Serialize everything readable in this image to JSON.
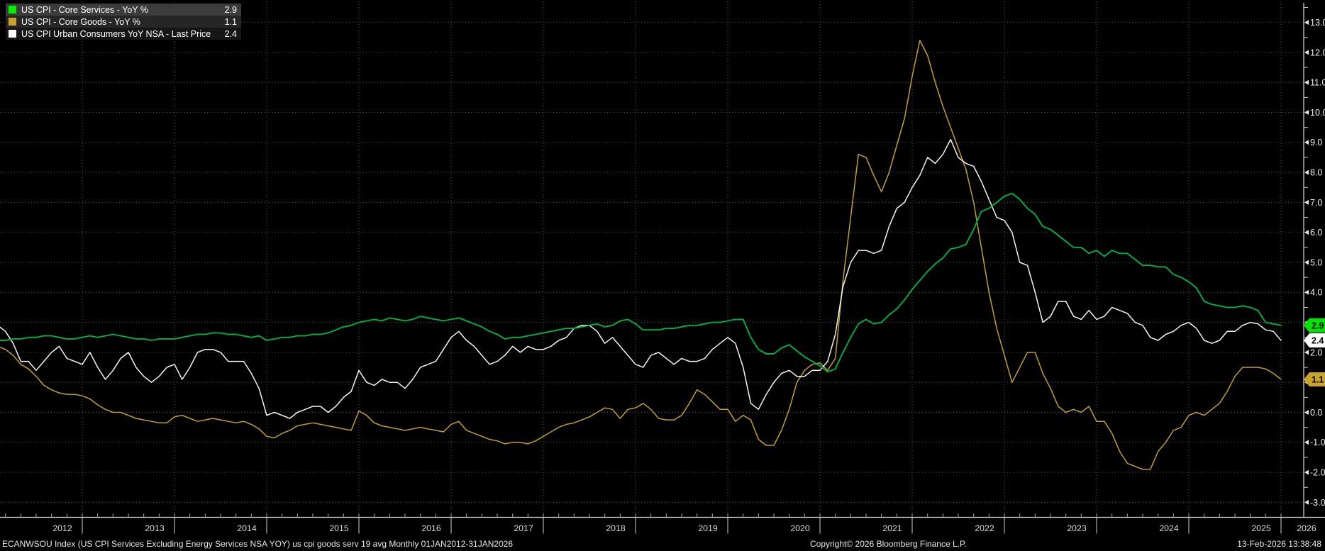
{
  "window": {
    "background": "#000000",
    "accent_green": "#00E400",
    "accent_gold": "#C8A22C",
    "accent_white": "#FFFFFF"
  },
  "legend": {
    "rows": [
      {
        "label": "US CPI - Core Services - YoY %",
        "value": "2.9",
        "swatch": "#00F100"
      },
      {
        "label": "US CPI - Core Goods - YoY %",
        "value": "1.1",
        "swatch": "#C8A22C"
      },
      {
        "label": "US CPI Urban Consumers YoY NSA - Last Price",
        "value": "2.4",
        "swatch": "#FFFFFF"
      }
    ]
  },
  "footer": {
    "left": "ECANWSOU Index (US CPI Services Excluding Energy Services NSA YOY) us cpi goods serv 19 avg Monthly 01JAN2012-31JAN2026",
    "copyright": "Copyright© 2026 Bloomberg Finance L.P.",
    "timestamp": "13-Feb-2026 13:38:48"
  },
  "chart_data": {
    "type": "line",
    "title": "",
    "x_unit": "month",
    "x_start": "2012-01",
    "x_end": "2026-01",
    "frequency": "Monthly",
    "grid": {
      "horizontal_every": 1.0,
      "vertical": "yearly",
      "style": "dotted"
    },
    "legend_position": "top-left",
    "ylim": [
      -3.5,
      13.6
    ],
    "year_labels": [
      "2012",
      "2013",
      "2014",
      "2015",
      "2016",
      "2017",
      "2018",
      "2019",
      "2020",
      "2021",
      "2022",
      "2023",
      "2024",
      "2025",
      "2026"
    ],
    "y_ticks": [
      {
        "value": 13,
        "label": "13.0"
      },
      {
        "value": 12,
        "label": "12.0"
      },
      {
        "value": 11,
        "label": "11.0"
      },
      {
        "value": 10,
        "label": "10.0"
      },
      {
        "value": 9,
        "label": "9.0"
      },
      {
        "value": 8,
        "label": "8.0"
      },
      {
        "value": 7,
        "label": "7.0"
      },
      {
        "value": 6,
        "label": "6.0"
      },
      {
        "value": 5,
        "label": "5.0"
      },
      {
        "value": 4,
        "label": "4.0"
      },
      {
        "value": 2,
        "label": "2.0"
      },
      {
        "value": 0,
        "label": "0.0"
      },
      {
        "value": -1,
        "label": "-1.0"
      },
      {
        "value": -2,
        "label": "-2.0"
      },
      {
        "value": -3,
        "label": "-3.0"
      }
    ],
    "last_value_badges": [
      {
        "value": 2.9,
        "label": "2.9",
        "bg": "#00E400",
        "fg": "#000000"
      },
      {
        "value": 2.4,
        "label": "2.4",
        "bg": "#FFFFFF",
        "fg": "#000000"
      },
      {
        "value": 1.1,
        "label": "1.1",
        "bg": "#C9A42A",
        "fg": "#000000"
      }
    ],
    "series": [
      {
        "name": "US CPI - Core Services - YoY %",
        "color": "#00B140",
        "last": 2.9,
        "values": [
          2.35,
          2.4,
          2.4,
          2.45,
          2.45,
          2.5,
          2.5,
          2.55,
          2.55,
          2.5,
          2.45,
          2.45,
          2.5,
          2.55,
          2.5,
          2.55,
          2.6,
          2.55,
          2.5,
          2.45,
          2.45,
          2.4,
          2.45,
          2.45,
          2.45,
          2.5,
          2.55,
          2.6,
          2.6,
          2.65,
          2.65,
          2.6,
          2.6,
          2.55,
          2.5,
          2.55,
          2.4,
          2.45,
          2.5,
          2.5,
          2.55,
          2.55,
          2.6,
          2.6,
          2.65,
          2.75,
          2.85,
          2.9,
          3.0,
          3.05,
          3.1,
          3.05,
          3.15,
          3.1,
          3.05,
          3.1,
          3.2,
          3.15,
          3.1,
          3.05,
          3.1,
          3.15,
          3.05,
          2.95,
          2.85,
          2.7,
          2.6,
          2.45,
          2.5,
          2.5,
          2.55,
          2.6,
          2.65,
          2.7,
          2.75,
          2.8,
          2.8,
          2.85,
          2.9,
          2.95,
          2.85,
          2.9,
          3.05,
          3.1,
          2.95,
          2.75,
          2.75,
          2.75,
          2.8,
          2.8,
          2.85,
          2.9,
          2.9,
          2.95,
          3.0,
          3.0,
          3.05,
          3.1,
          3.1,
          2.5,
          2.1,
          1.95,
          1.95,
          2.15,
          2.25,
          2.05,
          1.85,
          1.7,
          1.55,
          1.35,
          1.45,
          2.0,
          2.5,
          2.95,
          3.1,
          2.95,
          3.0,
          3.25,
          3.45,
          3.75,
          4.1,
          4.4,
          4.7,
          4.95,
          5.15,
          5.45,
          5.5,
          5.6,
          6.1,
          6.7,
          6.8,
          7.0,
          7.2,
          7.3,
          7.1,
          6.8,
          6.6,
          6.2,
          6.1,
          5.9,
          5.7,
          5.5,
          5.5,
          5.3,
          5.4,
          5.2,
          5.4,
          5.3,
          5.3,
          5.1,
          4.9,
          4.9,
          4.85,
          4.85,
          4.6,
          4.5,
          4.35,
          4.15,
          3.7,
          3.6,
          3.55,
          3.5,
          3.5,
          3.55,
          3.5,
          3.4,
          3.0,
          2.95,
          2.9
        ]
      },
      {
        "name": "US CPI - Core Goods - YoY %",
        "color": "#C2A030",
        "last": 1.1,
        "values": [
          2.3,
          2.2,
          2.1,
          1.9,
          1.6,
          1.45,
          1.2,
          0.9,
          0.75,
          0.65,
          0.6,
          0.6,
          0.55,
          0.45,
          0.25,
          0.1,
          0.0,
          0.0,
          -0.1,
          -0.2,
          -0.25,
          -0.3,
          -0.35,
          -0.35,
          -0.15,
          -0.1,
          -0.2,
          -0.3,
          -0.25,
          -0.2,
          -0.25,
          -0.3,
          -0.35,
          -0.3,
          -0.4,
          -0.55,
          -0.8,
          -0.85,
          -0.7,
          -0.6,
          -0.45,
          -0.4,
          -0.35,
          -0.4,
          -0.45,
          -0.5,
          -0.55,
          -0.6,
          0.05,
          -0.1,
          -0.35,
          -0.45,
          -0.5,
          -0.55,
          -0.6,
          -0.55,
          -0.5,
          -0.55,
          -0.6,
          -0.65,
          -0.4,
          -0.3,
          -0.6,
          -0.7,
          -0.8,
          -0.9,
          -0.95,
          -1.05,
          -1.0,
          -1.0,
          -1.05,
          -0.95,
          -0.8,
          -0.65,
          -0.5,
          -0.4,
          -0.35,
          -0.25,
          -0.15,
          0.0,
          0.15,
          0.1,
          -0.2,
          0.1,
          0.15,
          0.3,
          0.1,
          -0.2,
          -0.25,
          -0.25,
          -0.1,
          0.3,
          0.75,
          0.6,
          0.35,
          0.1,
          0.1,
          -0.3,
          -0.1,
          -0.25,
          -0.9,
          -1.1,
          -1.1,
          -0.6,
          0.1,
          1.0,
          1.4,
          1.6,
          1.65,
          1.4,
          1.8,
          4.4,
          6.5,
          8.6,
          8.5,
          7.9,
          7.35,
          8.0,
          8.9,
          9.8,
          11.2,
          12.4,
          11.9,
          11.0,
          10.2,
          9.5,
          8.8,
          8.1,
          7.0,
          5.5,
          4.0,
          2.8,
          1.9,
          1.0,
          1.5,
          2.0,
          2.0,
          1.3,
          0.8,
          0.2,
          0.0,
          0.1,
          0.0,
          0.2,
          -0.3,
          -0.3,
          -0.7,
          -1.3,
          -1.7,
          -1.8,
          -1.9,
          -1.9,
          -1.3,
          -1.0,
          -0.6,
          -0.5,
          -0.1,
          0.0,
          -0.1,
          0.1,
          0.3,
          0.7,
          1.2,
          1.5,
          1.5,
          1.5,
          1.45,
          1.3,
          1.1
        ]
      },
      {
        "name": "US CPI Urban Consumers YoY NSA - Last Price",
        "color": "#F5F5F5",
        "last": 2.4,
        "values": [
          2.9,
          2.9,
          2.7,
          2.3,
          1.7,
          1.7,
          1.4,
          1.7,
          2.0,
          2.2,
          1.8,
          1.7,
          1.6,
          2.0,
          1.5,
          1.1,
          1.4,
          1.8,
          2.0,
          1.5,
          1.2,
          1.0,
          1.2,
          1.5,
          1.6,
          1.1,
          1.5,
          2.0,
          2.1,
          2.1,
          2.0,
          1.7,
          1.7,
          1.7,
          1.3,
          0.8,
          -0.1,
          0.0,
          -0.1,
          -0.2,
          0.0,
          0.1,
          0.2,
          0.2,
          0.0,
          0.2,
          0.5,
          0.7,
          1.4,
          1.0,
          0.9,
          1.1,
          1.0,
          1.0,
          0.8,
          1.1,
          1.5,
          1.6,
          1.7,
          2.1,
          2.5,
          2.7,
          2.4,
          2.2,
          1.9,
          1.6,
          1.7,
          1.9,
          2.2,
          2.0,
          2.2,
          2.1,
          2.1,
          2.2,
          2.4,
          2.5,
          2.8,
          2.9,
          2.9,
          2.7,
          2.3,
          2.5,
          2.2,
          1.9,
          1.6,
          1.5,
          1.9,
          2.0,
          1.8,
          1.6,
          1.8,
          1.7,
          1.7,
          1.8,
          2.1,
          2.3,
          2.5,
          2.3,
          1.5,
          0.3,
          0.1,
          0.6,
          1.0,
          1.3,
          1.4,
          1.2,
          1.2,
          1.4,
          1.4,
          1.7,
          2.6,
          4.2,
          5.0,
          5.4,
          5.4,
          5.3,
          5.4,
          6.2,
          6.8,
          7.0,
          7.5,
          7.9,
          8.5,
          8.3,
          8.6,
          9.1,
          8.5,
          8.3,
          8.2,
          7.7,
          7.1,
          6.5,
          6.4,
          6.0,
          5.0,
          4.9,
          4.0,
          3.0,
          3.2,
          3.7,
          3.7,
          3.2,
          3.1,
          3.4,
          3.1,
          3.2,
          3.5,
          3.4,
          3.3,
          3.0,
          2.9,
          2.5,
          2.4,
          2.6,
          2.7,
          2.9,
          3.0,
          2.8,
          2.4,
          2.3,
          2.4,
          2.7,
          2.7,
          2.9,
          3.0,
          2.95,
          2.75,
          2.7,
          2.4
        ]
      }
    ]
  }
}
